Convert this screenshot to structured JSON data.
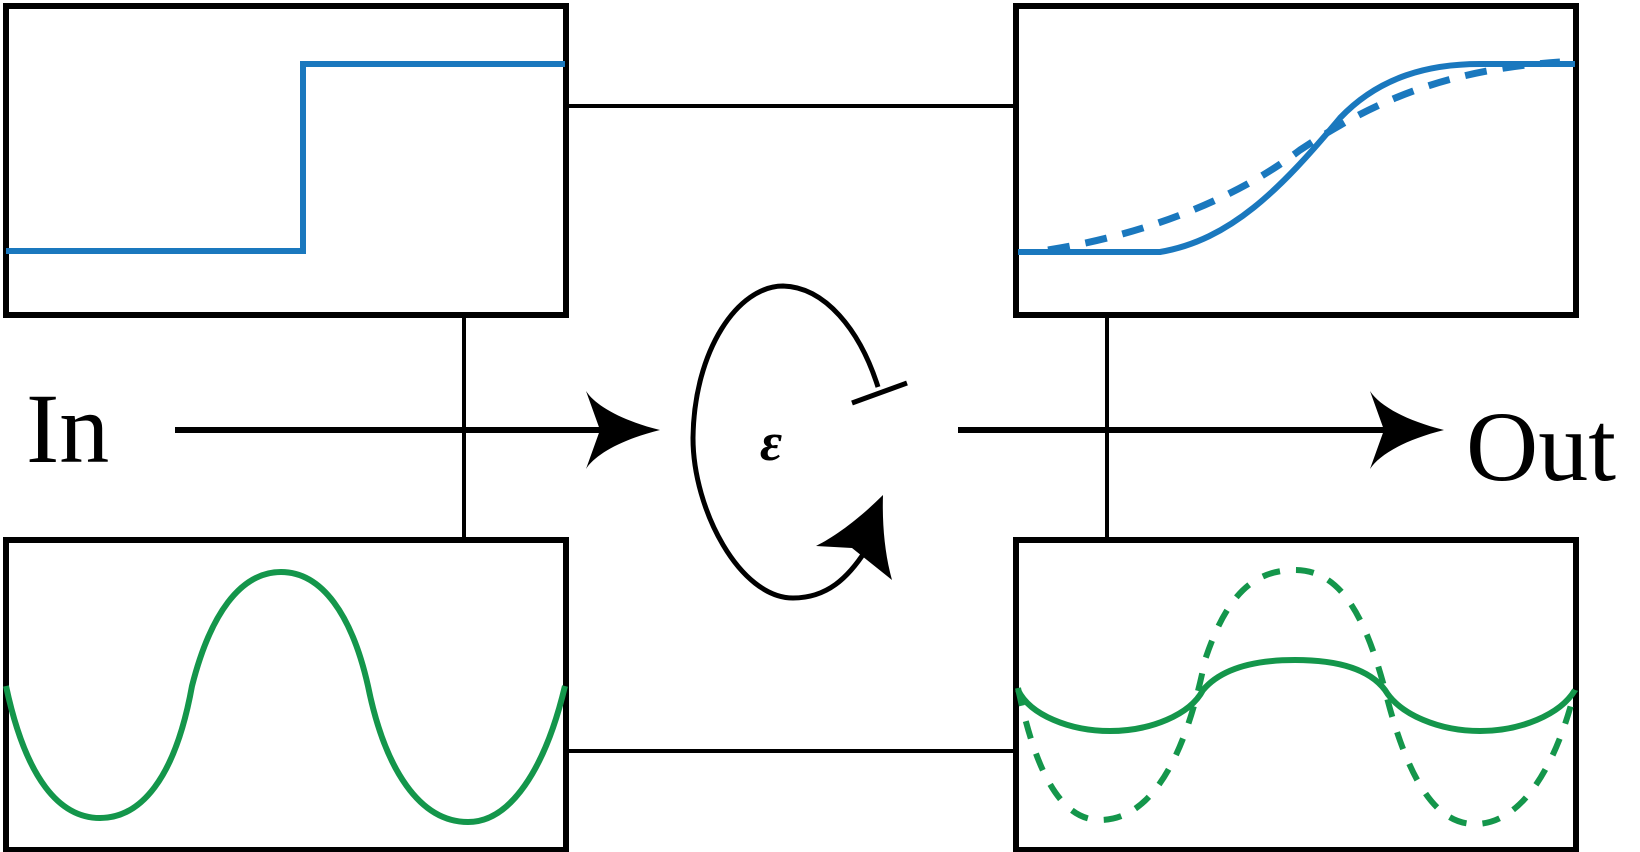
{
  "labels": {
    "input": "In",
    "output": "Out",
    "operator": "ε"
  },
  "colors": {
    "frame": "#000000",
    "step_signal": "#1a78be",
    "wave_signal": "#14964b"
  },
  "panels": [
    {
      "id": "input-step",
      "signal": "step",
      "style": "solid"
    },
    {
      "id": "input-wave",
      "signal": "wave",
      "style": "solid"
    },
    {
      "id": "output-step",
      "signal": "smoothed-step",
      "style": "solid-and-dashed"
    },
    {
      "id": "output-wave",
      "signal": "damped-and-amplified-wave",
      "style": "solid-and-dashed"
    }
  ]
}
